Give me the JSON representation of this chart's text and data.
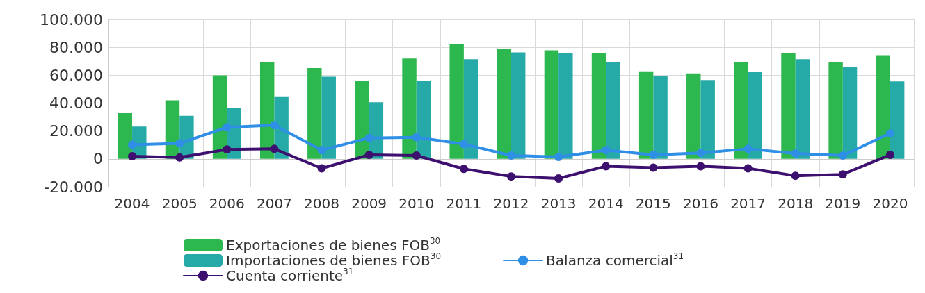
{
  "chart_data": {
    "type": "bar",
    "categories": [
      "2004",
      "2005",
      "2006",
      "2007",
      "2008",
      "2009",
      "2010",
      "2011",
      "2012",
      "2013",
      "2014",
      "2015",
      "2016",
      "2017",
      "2018",
      "2019",
      "2020"
    ],
    "series": [
      {
        "name": "Exportaciones de bienes FOB$^{30}$",
        "color": "#2db84f",
        "values": [
          32800,
          42000,
          59900,
          69100,
          65200,
          56000,
          72000,
          82100,
          78700,
          77800,
          75800,
          62800,
          61300,
          69600,
          75800,
          69600,
          74400
        ]
      },
      {
        "name": "Importaciones de bienes FOB$^{30}$",
        "color": "#26aaa8",
        "values": [
          23200,
          30900,
          36700,
          44900,
          58900,
          40600,
          56000,
          71500,
          76300,
          75800,
          69600,
          59400,
          56500,
          62300,
          71500,
          66200,
          55600
        ]
      },
      {
        "name": "Balanza comercial$^{31}$",
        "type": "line",
        "color": "#2f8fe6",
        "values": [
          10100,
          11100,
          22700,
          24200,
          6300,
          15000,
          15500,
          10600,
          2400,
          1400,
          6300,
          2900,
          4300,
          7200,
          3900,
          2400,
          18400
        ]
      },
      {
        "name": "Cuenta corriente$^{31}$",
        "type": "line",
        "color": "#3d0f6e",
        "values": [
          1900,
          1000,
          6800,
          7200,
          -6800,
          2900,
          2400,
          -7200,
          -12600,
          -14000,
          -5300,
          -6300,
          -5300,
          -6800,
          -12100,
          -11100,
          2900
        ]
      }
    ],
    "ylim": [
      -20000,
      100000
    ],
    "yticks": [
      {
        "value": -20000,
        "label": "-20.000"
      },
      {
        "value": 0,
        "label": "0"
      },
      {
        "value": 20000,
        "label": "20.000"
      },
      {
        "value": 40000,
        "label": "40.000"
      },
      {
        "value": 60000,
        "label": "60.000"
      },
      {
        "value": 80000,
        "label": "80.000"
      },
      {
        "value": 100000,
        "label": "100.000"
      }
    ],
    "grid": true,
    "legend": "bottom",
    "marker": "circle",
    "line_style": "solid"
  }
}
